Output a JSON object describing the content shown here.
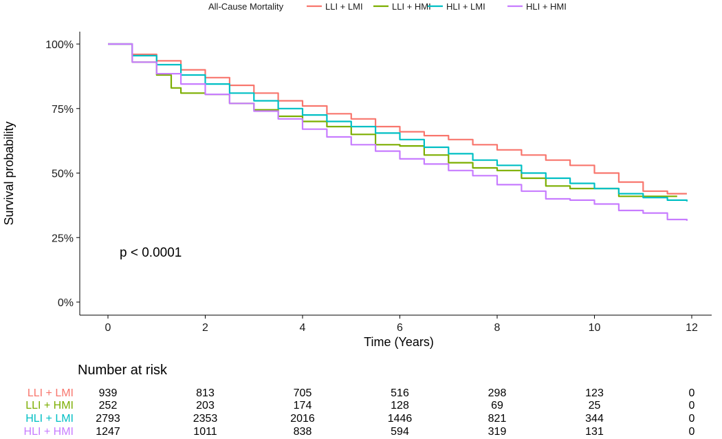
{
  "legend": {
    "title": "All-Cause Mortality",
    "items": [
      {
        "label": "LLI + LMI",
        "color": "#F8766D"
      },
      {
        "label": "LLI + HMI",
        "color": "#7CAE00"
      },
      {
        "label": "HLI + LMI",
        "color": "#00BFC4"
      },
      {
        "label": "HLI + HMI",
        "color": "#C77CFF"
      }
    ]
  },
  "annotation": "p < 0.0001",
  "risk_table": {
    "title": "Number at risk",
    "times": [
      0,
      2,
      4,
      6,
      8,
      10,
      12
    ],
    "rows": [
      {
        "label": "LLI + LMI",
        "color": "#F8766D",
        "values": [
          "939",
          "813",
          "705",
          "516",
          "298",
          "123",
          "0"
        ]
      },
      {
        "label": "LLI + HMI",
        "color": "#7CAE00",
        "values": [
          "252",
          "203",
          "174",
          "128",
          "69",
          "25",
          "0"
        ]
      },
      {
        "label": "HLI + LMI",
        "color": "#00BFC4",
        "values": [
          "2793",
          "2353",
          "2016",
          "1446",
          "821",
          "344",
          "0"
        ]
      },
      {
        "label": "HLI + HMI",
        "color": "#C77CFF",
        "values": [
          "1247",
          "1011",
          "838",
          "594",
          "319",
          "131",
          "0"
        ]
      }
    ]
  },
  "chart_data": {
    "type": "line",
    "xlabel": "Time (Years)",
    "ylabel": "Survival probability",
    "xlim": [
      0,
      12
    ],
    "ylim": [
      0,
      1
    ],
    "xticks": [
      "0",
      "2",
      "4",
      "6",
      "8",
      "10",
      "12"
    ],
    "yticks": [
      "0%",
      "25%",
      "50%",
      "75%",
      "100%"
    ],
    "ytick_values": [
      0,
      0.25,
      0.5,
      0.75,
      1
    ],
    "grid": false,
    "legend_position": "top",
    "series": [
      {
        "name": "LLI + LMI",
        "color": "#F8766D",
        "x": [
          0,
          0.5,
          1,
          1.5,
          2,
          2.5,
          3,
          3.5,
          4,
          4.5,
          5,
          5.5,
          6,
          6.5,
          7,
          7.5,
          8,
          8.5,
          9,
          9.5,
          10,
          10.5,
          11,
          11.5,
          11.9
        ],
        "y": [
          1.0,
          0.96,
          0.935,
          0.9,
          0.87,
          0.84,
          0.81,
          0.78,
          0.76,
          0.73,
          0.71,
          0.68,
          0.66,
          0.645,
          0.63,
          0.61,
          0.59,
          0.57,
          0.55,
          0.53,
          0.5,
          0.465,
          0.43,
          0.42,
          0.42
        ]
      },
      {
        "name": "LLI + HMI",
        "color": "#7CAE00",
        "x": [
          0,
          0.5,
          1,
          1.3,
          1.5,
          2,
          2.5,
          3,
          3.5,
          4,
          4.5,
          5,
          5.5,
          6,
          6.5,
          7,
          7.5,
          8,
          8.5,
          9,
          9.5,
          10,
          10.5,
          11,
          11.5,
          11.7
        ],
        "y": [
          1.0,
          0.93,
          0.88,
          0.83,
          0.81,
          0.805,
          0.77,
          0.745,
          0.72,
          0.7,
          0.68,
          0.65,
          0.61,
          0.605,
          0.57,
          0.54,
          0.52,
          0.51,
          0.48,
          0.45,
          0.44,
          0.44,
          0.41,
          0.41,
          0.41,
          0.41
        ]
      },
      {
        "name": "HLI + LMI",
        "color": "#00BFC4",
        "x": [
          0,
          0.5,
          1,
          1.5,
          2,
          2.5,
          3,
          3.5,
          4,
          4.5,
          5,
          5.5,
          6,
          6.5,
          7,
          7.5,
          8,
          8.5,
          9,
          9.5,
          10,
          10.5,
          11,
          11.5,
          11.9
        ],
        "y": [
          1.0,
          0.955,
          0.92,
          0.88,
          0.845,
          0.81,
          0.78,
          0.75,
          0.725,
          0.7,
          0.68,
          0.655,
          0.63,
          0.6,
          0.575,
          0.55,
          0.53,
          0.5,
          0.48,
          0.46,
          0.44,
          0.42,
          0.405,
          0.395,
          0.39
        ]
      },
      {
        "name": "HLI + HMI",
        "color": "#C77CFF",
        "x": [
          0,
          0.5,
          1,
          1.5,
          2,
          2.5,
          3,
          3.5,
          4,
          4.5,
          5,
          5.5,
          6,
          6.5,
          7,
          7.5,
          8,
          8.5,
          9,
          9.5,
          10,
          10.5,
          11,
          11.5,
          11.9
        ],
        "y": [
          1.0,
          0.93,
          0.885,
          0.845,
          0.805,
          0.77,
          0.74,
          0.71,
          0.67,
          0.64,
          0.61,
          0.585,
          0.555,
          0.535,
          0.51,
          0.49,
          0.455,
          0.43,
          0.4,
          0.395,
          0.38,
          0.355,
          0.345,
          0.32,
          0.315
        ]
      }
    ]
  }
}
